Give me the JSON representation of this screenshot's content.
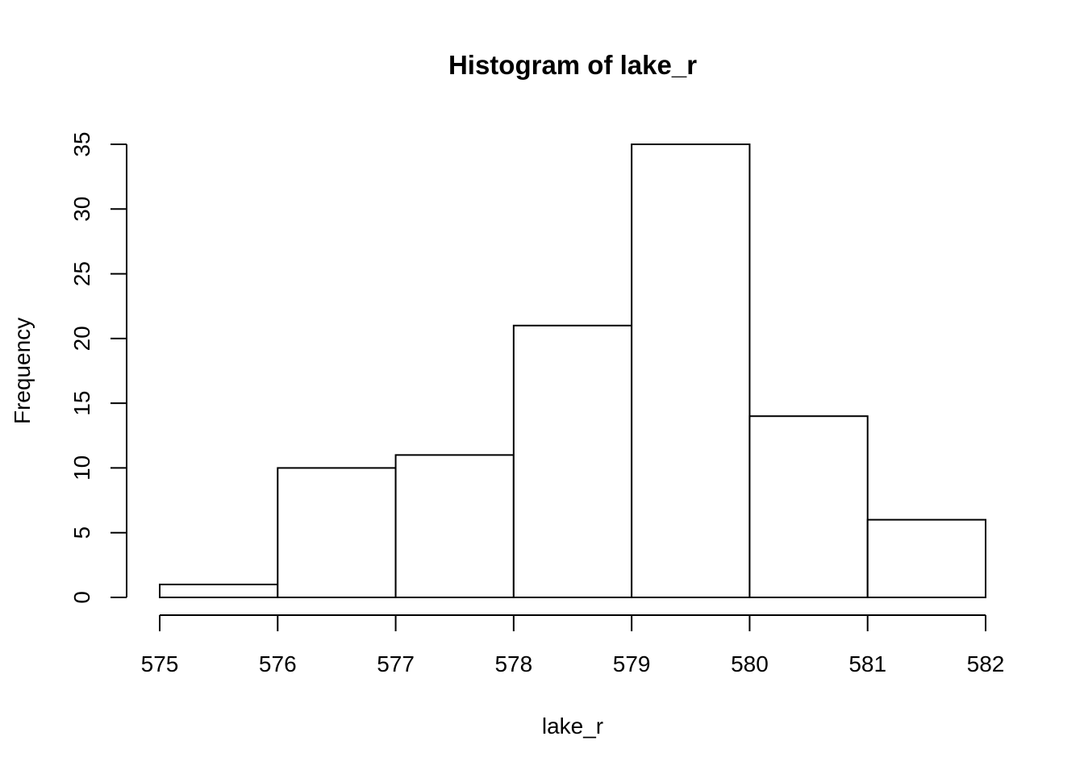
{
  "chart_data": {
    "type": "bar",
    "title": "Histogram of lake_r",
    "xlabel": "lake_r",
    "ylabel": "Frequency",
    "bins": [
      {
        "from": 575,
        "to": 576,
        "count": 1
      },
      {
        "from": 576,
        "to": 577,
        "count": 10
      },
      {
        "from": 577,
        "to": 578,
        "count": 11
      },
      {
        "from": 578,
        "to": 579,
        "count": 21
      },
      {
        "from": 579,
        "to": 580,
        "count": 35
      },
      {
        "from": 580,
        "to": 581,
        "count": 14
      },
      {
        "from": 581,
        "to": 582,
        "count": 6
      }
    ],
    "xlim": [
      575,
      582
    ],
    "ylim": [
      0,
      35
    ],
    "x_ticks": [
      "575",
      "576",
      "577",
      "578",
      "579",
      "580",
      "581",
      "582"
    ],
    "y_ticks": [
      "0",
      "5",
      "10",
      "15",
      "20",
      "25",
      "30",
      "35"
    ],
    "grid": false,
    "legend": "none",
    "colors": {
      "bar_fill": "#ffffff",
      "bar_stroke": "#000000",
      "background": "#ffffff"
    }
  }
}
